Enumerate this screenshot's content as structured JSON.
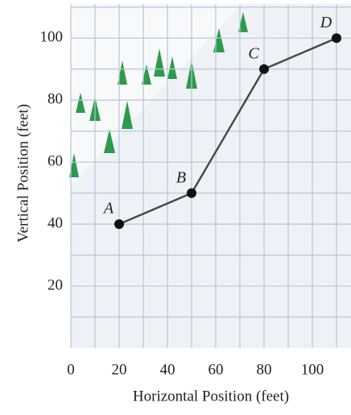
{
  "chart_data": {
    "type": "line",
    "x_label": "Horizontal Position (feet)",
    "y_label": "Vertical Position (feet)",
    "x": [
      20,
      50,
      80,
      110
    ],
    "series": [
      {
        "values": [
          40,
          50,
          90,
          100
        ],
        "color": "#4a4a4a",
        "point_labels": [
          "A",
          "B",
          "C",
          "D"
        ]
      }
    ],
    "xlim": [
      0,
      116
    ],
    "ylim": [
      0,
      111
    ],
    "xticks": [
      0,
      20,
      40,
      60,
      80,
      100
    ],
    "yticks": [
      20,
      40,
      60,
      80,
      100
    ],
    "xgrid": [
      10,
      30,
      50,
      70,
      90,
      110
    ],
    "ygrid": [
      10,
      30,
      50,
      70,
      90,
      110
    ],
    "grid": true
  }
}
